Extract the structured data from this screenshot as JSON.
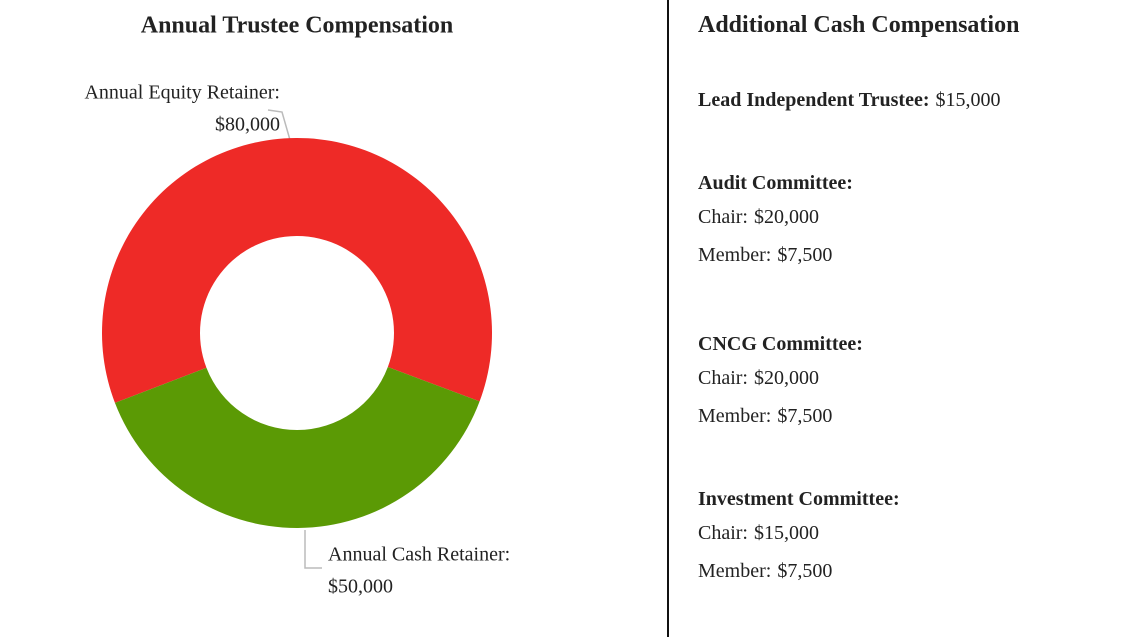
{
  "chart_data": {
    "type": "donut",
    "title": "Annual Trustee Compensation",
    "labels": [
      "Annual Equity Retainer:",
      "Annual Cash Retainer:"
    ],
    "values": [
      80000,
      50000
    ],
    "value_labels": [
      "$80,000",
      "$50,000"
    ],
    "colors": [
      "#ee2a27",
      "#5b9a05"
    ]
  },
  "compensation": {
    "title": "Additional Cash Compensation",
    "lead": {
      "label": "Lead Independent Trustee:",
      "amount": "$15,000"
    },
    "committees": [
      {
        "name": "Audit Committee:",
        "rows": [
          {
            "role": "Chair:",
            "amount": "$20,000"
          },
          {
            "role": "Member:",
            "amount": "$7,500"
          }
        ]
      },
      {
        "name": "CNCG Committee:",
        "rows": [
          {
            "role": "Chair:",
            "amount": "$20,000"
          },
          {
            "role": "Member:",
            "amount": "$7,500"
          }
        ]
      },
      {
        "name": "Investment Committee:",
        "rows": [
          {
            "role": "Chair:",
            "amount": "$15,000"
          },
          {
            "role": "Member:",
            "amount": "$7,500"
          }
        ]
      }
    ]
  }
}
